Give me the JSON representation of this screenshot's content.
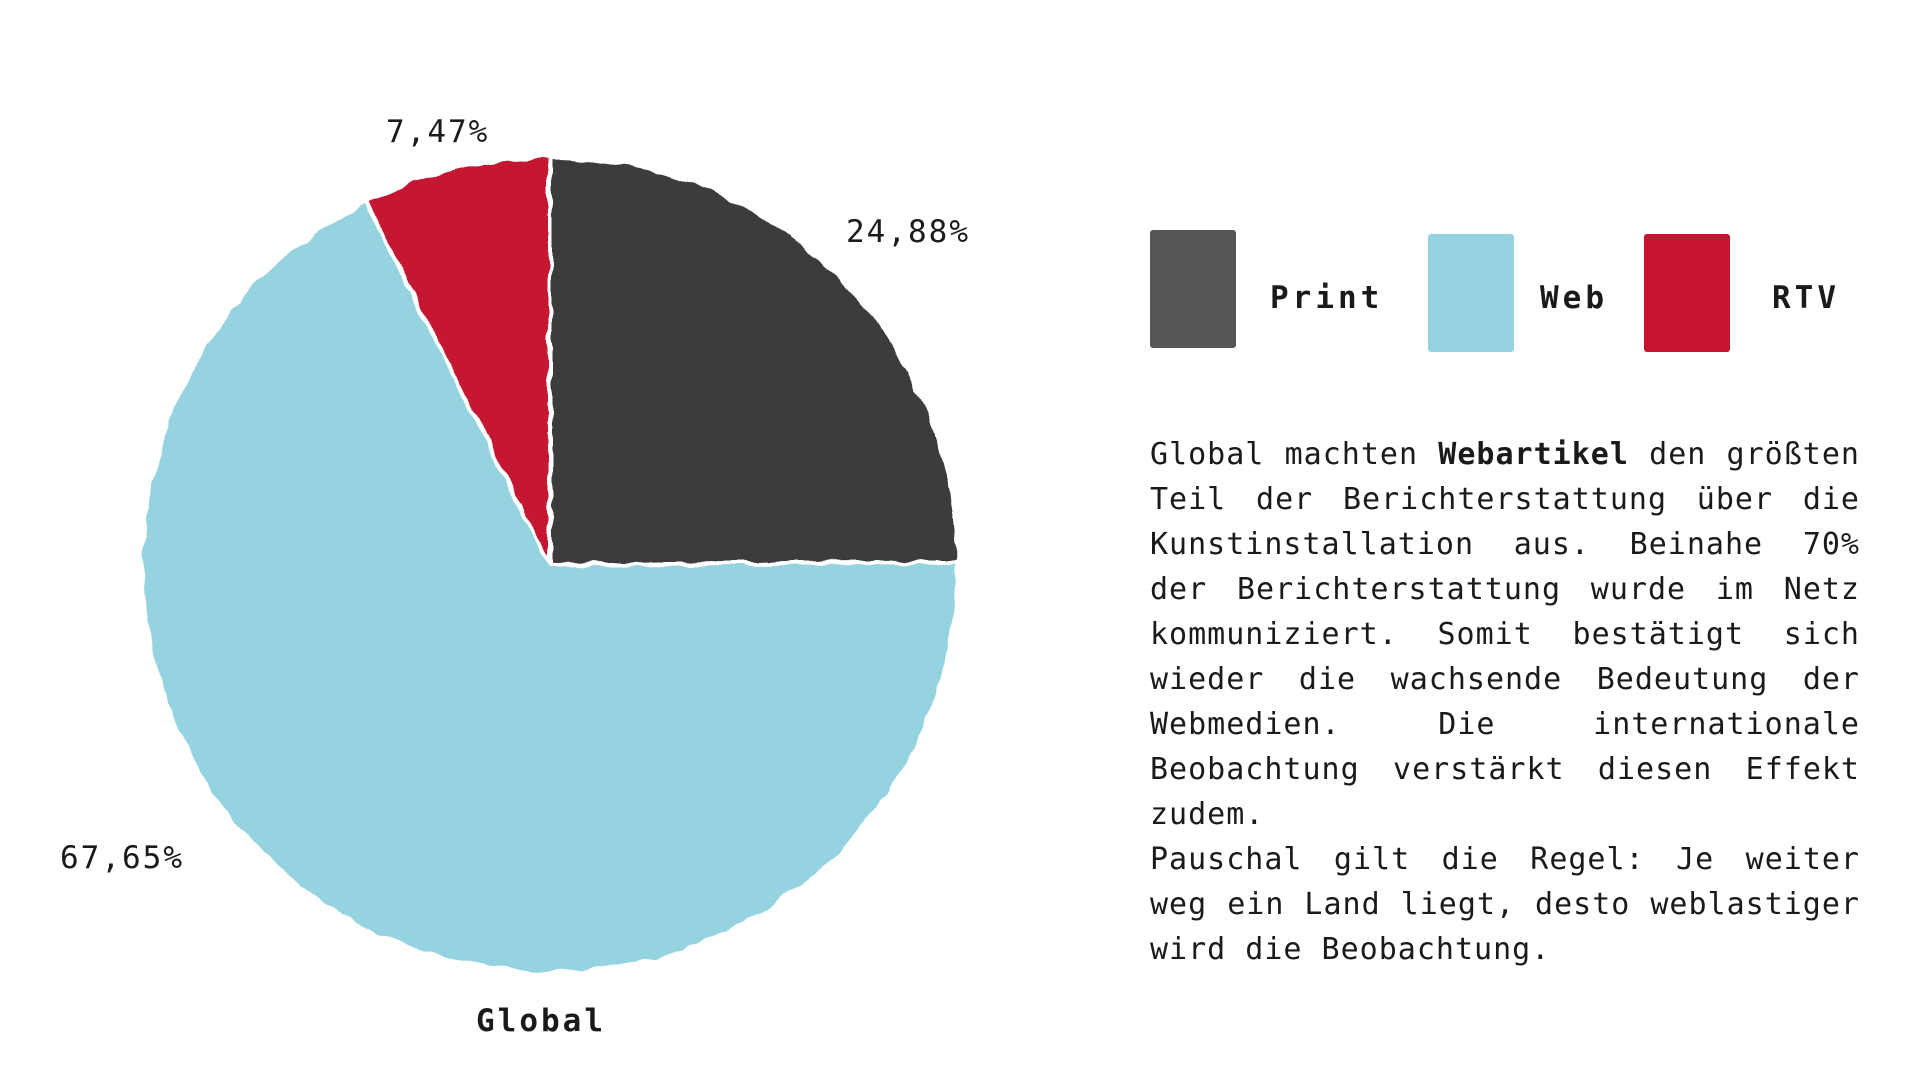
{
  "chart_data": {
    "type": "pie",
    "title": "Global",
    "slices": [
      {
        "name": "Print",
        "value": 24.88,
        "label": "24,88%",
        "color": "#3d3b3e"
      },
      {
        "name": "Web",
        "value": 67.65,
        "label": "67,65%",
        "color": "#96d3e1"
      },
      {
        "name": "RTV",
        "value": 7.47,
        "label": "7,47%",
        "color": "#c51330"
      }
    ],
    "legend_position": "top-right",
    "start_angle": "12 o'clock, clockwise"
  },
  "legend": {
    "items": [
      {
        "label": "Print",
        "color": "#555555"
      },
      {
        "label": "Web",
        "color": "#96d3e1"
      },
      {
        "label": "RTV",
        "color": "#c51330"
      }
    ]
  },
  "description": {
    "para1_before": "Global machten ",
    "para1_bold": "Webartikel",
    "para1_after": " den größten Teil der Berichterstattung über die Kunstinstallation aus. Be­inahe 70% der Berichterstattung wurde im Netz kommuniziert. Somit bestätigt sich wieder die wachsende Bedeutung der Webmedien. Die inter­nationale Beobachtung verstärkt diesen Effekt zudem.",
    "para2": "Pauschal gilt die Regel: Je weiter weg ein Land liegt, desto weblas­tiger wird die Beobachtung."
  }
}
